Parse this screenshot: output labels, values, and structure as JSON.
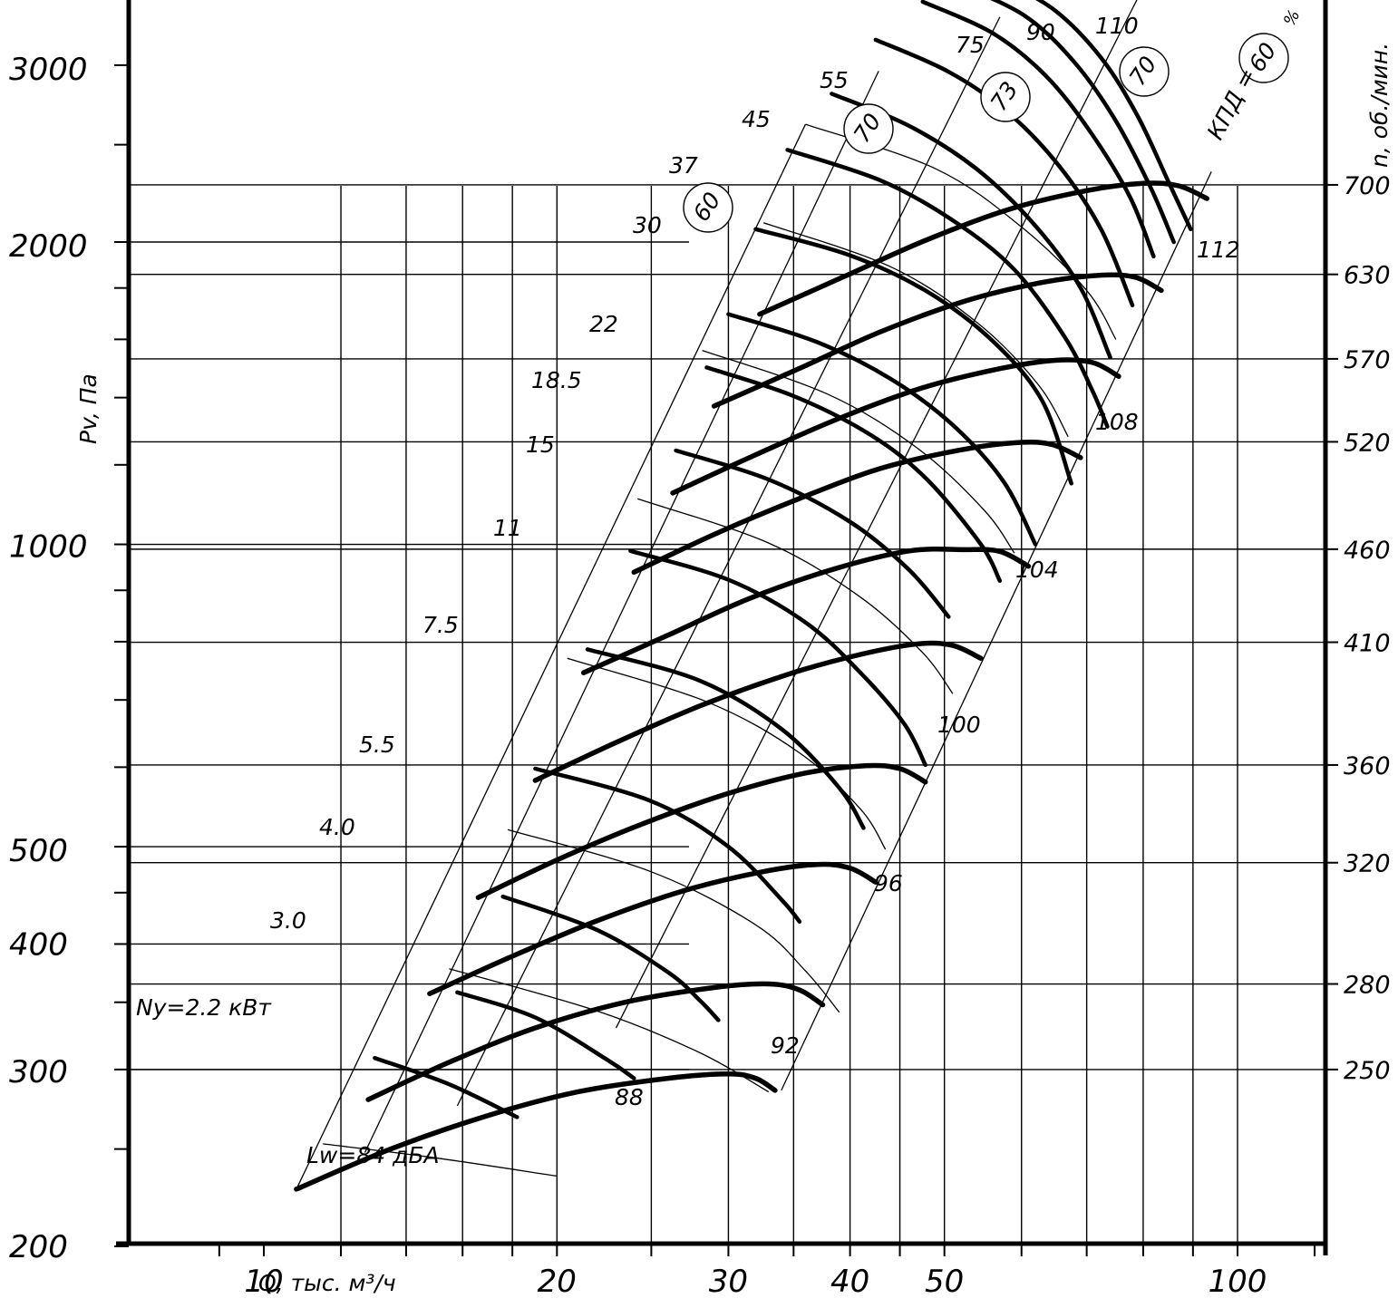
{
  "chart_data": {
    "type": "line",
    "title": "",
    "xlabel": "Q, тыс. м³/ч",
    "ylabel": "Pv, Па",
    "right_label": "n, об./мин.",
    "x_scale": "log",
    "y_scale": "log",
    "xlim": [
      8.5,
      123
    ],
    "ylim": [
      200,
      3700
    ],
    "grid": true,
    "x_ticks": [
      {
        "value": 10,
        "label": "10"
      },
      {
        "value": 20,
        "label": "20"
      },
      {
        "value": 30,
        "label": "30"
      },
      {
        "value": 40,
        "label": "40"
      },
      {
        "value": 50,
        "label": "50"
      },
      {
        "value": 100,
        "label": "100"
      }
    ],
    "y_ticks": [
      {
        "value": 200,
        "label": "200"
      },
      {
        "value": 300,
        "label": "300"
      },
      {
        "value": 400,
        "label": "400"
      },
      {
        "value": 500,
        "label": "500"
      },
      {
        "value": 1000,
        "label": "1000"
      },
      {
        "value": 2000,
        "label": "2000"
      },
      {
        "value": 3000,
        "label": "3000"
      }
    ],
    "speeds": [
      {
        "label": "250",
        "pv": 300
      },
      {
        "label": "280",
        "pv": 365
      },
      {
        "label": "320",
        "pv": 482
      },
      {
        "label": "360",
        "pv": 603
      },
      {
        "label": "410",
        "pv": 799
      },
      {
        "label": "460",
        "pv": 989
      },
      {
        "label": "520",
        "pv": 1265
      },
      {
        "label": "570",
        "pv": 1530
      },
      {
        "label": "630",
        "pv": 1857
      },
      {
        "label": "700",
        "pv": 2280
      }
    ],
    "power_labels": [
      "Ny=2.2 кВт",
      "3.0",
      "4.0",
      "5.5",
      "7.5",
      "11",
      "15",
      "18.5",
      "22",
      "30",
      "37",
      "45",
      "55",
      "75",
      "90",
      "110"
    ],
    "noise_labels": [
      "Lw=84 дБА",
      "88",
      "92",
      "96",
      "100",
      "104",
      "108",
      "112"
    ],
    "efficiency_label": "КПД =",
    "efficiency_unit": "%",
    "efficiency_values": [
      "60",
      "70",
      "73",
      "70",
      "60"
    ],
    "fan_curves": [
      {
        "n": "250",
        "points": [
          [
            10.8,
            228
          ],
          [
            13.5,
            250
          ],
          [
            17,
            270
          ],
          [
            21,
            285
          ],
          [
            26,
            294
          ],
          [
            30,
            297
          ],
          [
            32,
            294
          ],
          [
            33.5,
            286
          ]
        ]
      },
      {
        "n": "280",
        "points": [
          [
            12.8,
            280
          ],
          [
            15.5,
            305
          ],
          [
            19,
            330
          ],
          [
            23.5,
            350
          ],
          [
            29,
            362
          ],
          [
            33,
            365
          ],
          [
            35.5,
            360
          ],
          [
            37.5,
            348
          ]
        ]
      },
      {
        "n": "320",
        "points": [
          [
            14.8,
            357
          ],
          [
            18,
            389
          ],
          [
            22,
            422
          ],
          [
            27,
            452
          ],
          [
            32.5,
            472
          ],
          [
            37,
            480
          ],
          [
            40,
            476
          ],
          [
            42.5,
            461
          ]
        ]
      },
      {
        "n": "360",
        "points": [
          [
            16.6,
            445
          ],
          [
            20,
            485
          ],
          [
            24.5,
            527
          ],
          [
            30,
            565
          ],
          [
            36,
            592
          ],
          [
            41.5,
            602
          ],
          [
            45,
            598
          ],
          [
            47.8,
            580
          ]
        ]
      },
      {
        "n": "410",
        "points": [
          [
            19,
            582
          ],
          [
            23,
            635
          ],
          [
            28,
            690
          ],
          [
            34.5,
            742
          ],
          [
            41,
            777
          ],
          [
            47,
            796
          ],
          [
            51,
            793
          ],
          [
            54.5,
            770
          ]
        ]
      },
      {
        "n": "460",
        "points": [
          [
            21.3,
            745
          ],
          [
            26,
            812
          ],
          [
            31.5,
            883
          ],
          [
            38.5,
            945
          ],
          [
            46,
            985
          ],
          [
            52.5,
            988
          ],
          [
            57,
            984
          ],
          [
            61,
            951
          ]
        ]
      },
      {
        "n": "520",
        "points": [
          [
            24,
            938
          ],
          [
            29,
            1023
          ],
          [
            35.5,
            1111
          ],
          [
            43,
            1190
          ],
          [
            52,
            1242
          ],
          [
            59.5,
            1263
          ],
          [
            64.5,
            1257
          ],
          [
            69,
            1220
          ]
        ]
      },
      {
        "n": "570",
        "points": [
          [
            26.3,
            1125
          ],
          [
            32,
            1228
          ],
          [
            39,
            1335
          ],
          [
            47.5,
            1432
          ],
          [
            57,
            1496
          ],
          [
            65,
            1525
          ],
          [
            71,
            1517
          ],
          [
            75.5,
            1470
          ]
        ]
      },
      {
        "n": "630",
        "points": [
          [
            29,
            1373
          ],
          [
            35.5,
            1497
          ],
          [
            43,
            1628
          ],
          [
            52.5,
            1747
          ],
          [
            63,
            1823
          ],
          [
            72,
            1853
          ],
          [
            78.5,
            1845
          ],
          [
            83.5,
            1790
          ]
        ]
      },
      {
        "n": "700",
        "points": [
          [
            32.3,
            1695
          ],
          [
            39.5,
            1849
          ],
          [
            48,
            2011
          ],
          [
            58.5,
            2158
          ],
          [
            70,
            2250
          ],
          [
            80,
            2288
          ],
          [
            87,
            2275
          ],
          [
            93,
            2210
          ]
        ]
      }
    ],
    "power_curves": [
      {
        "label": "Ny=2.2 кВт",
        "points": [
          [
            13,
            308
          ],
          [
            15.5,
            290
          ],
          [
            18.2,
            269
          ]
        ]
      },
      {
        "label": "3.0",
        "points": [
          [
            15.8,
            358
          ],
          [
            19,
            338
          ],
          [
            22.5,
            307
          ],
          [
            24,
            294
          ]
        ]
      },
      {
        "label": "4.0",
        "points": [
          [
            17.6,
            446
          ],
          [
            22,
            413
          ],
          [
            26,
            375
          ],
          [
            28,
            352
          ],
          [
            29.3,
            336
          ]
        ]
      },
      {
        "label": "5.5",
        "points": [
          [
            19,
            598
          ],
          [
            25,
            555
          ],
          [
            30,
            500
          ],
          [
            34,
            443
          ],
          [
            35.5,
            421
          ]
        ]
      },
      {
        "label": "7.5",
        "points": [
          [
            21.5,
            786
          ],
          [
            28,
            732
          ],
          [
            34,
            655
          ],
          [
            39,
            572
          ],
          [
            41.3,
            522
          ]
        ]
      },
      {
        "label": "11",
        "points": [
          [
            23.8,
            985
          ],
          [
            30,
            922
          ],
          [
            36,
            836
          ],
          [
            41,
            745
          ],
          [
            45.5,
            662
          ],
          [
            47.8,
            603
          ]
        ]
      },
      {
        "label": "15",
        "points": [
          [
            26.5,
            1240
          ],
          [
            33,
            1160
          ],
          [
            40,
            1053
          ],
          [
            46,
            943
          ],
          [
            50.5,
            847
          ]
        ]
      },
      {
        "label": "18.5",
        "points": [
          [
            28.5,
            1500
          ],
          [
            35,
            1405
          ],
          [
            42,
            1285
          ],
          [
            48,
            1160
          ],
          [
            54.5,
            1000
          ],
          [
            57,
            920
          ]
        ]
      },
      {
        "label": "22",
        "points": [
          [
            30,
            1695
          ],
          [
            37,
            1590
          ],
          [
            44,
            1462
          ],
          [
            51,
            1315
          ],
          [
            57.5,
            1155
          ],
          [
            62,
            1000
          ]
        ]
      },
      {
        "label": "30",
        "points": [
          [
            32,
            2060
          ],
          [
            40,
            1940
          ],
          [
            48,
            1785
          ],
          [
            56,
            1595
          ],
          [
            63,
            1390
          ],
          [
            67.5,
            1150
          ]
        ]
      },
      {
        "label": "37",
        "points": [
          [
            34.5,
            2470
          ],
          [
            43,
            2303
          ],
          [
            51,
            2102
          ],
          [
            59,
            1877
          ],
          [
            66.5,
            1607
          ],
          [
            71,
            1420
          ],
          [
            73.5,
            1310
          ]
        ]
      },
      {
        "label": "45",
        "points": [
          [
            38.3,
            2810
          ],
          [
            46,
            2610
          ],
          [
            54,
            2363
          ],
          [
            62,
            2076
          ],
          [
            69,
            1800
          ],
          [
            74,
            1535
          ]
        ]
      },
      {
        "label": "55",
        "points": [
          [
            42.5,
            3180
          ],
          [
            50.5,
            2955
          ],
          [
            58,
            2696
          ],
          [
            65.5,
            2385
          ],
          [
            72.5,
            2055
          ],
          [
            78,
            1730
          ]
        ]
      },
      {
        "label": "75",
        "points": [
          [
            47.5,
            3470
          ],
          [
            56,
            3230
          ],
          [
            63.5,
            2930
          ],
          [
            70.5,
            2580
          ],
          [
            77.5,
            2220
          ],
          [
            82,
            1935
          ]
        ]
      },
      {
        "label": "90",
        "points": [
          [
            51.5,
            3620
          ],
          [
            60.5,
            3358
          ],
          [
            68,
            3020
          ],
          [
            75,
            2640
          ],
          [
            81.5,
            2262
          ],
          [
            86,
            2000
          ]
        ]
      },
      {
        "label": "110",
        "points": [
          [
            57,
            3660
          ],
          [
            65,
            3398
          ],
          [
            72.5,
            3047
          ],
          [
            79,
            2667
          ],
          [
            85,
            2292
          ],
          [
            89.5,
            2060
          ]
        ]
      }
    ],
    "noise_curves": [
      {
        "label": "Lw=84 дБА",
        "points": [
          [
            11.5,
            253
          ],
          [
            15,
            245
          ],
          [
            20,
            235
          ]
        ]
      },
      {
        "label": "88",
        "points": [
          [
            15.5,
            378
          ],
          [
            22,
            343
          ],
          [
            28,
            312
          ],
          [
            33,
            285
          ]
        ]
      },
      {
        "label": "92",
        "points": [
          [
            17.8,
            520
          ],
          [
            25,
            472
          ],
          [
            32,
            418
          ],
          [
            36,
            376
          ],
          [
            39,
            342
          ]
        ]
      },
      {
        "label": "96",
        "points": [
          [
            20.5,
            770
          ],
          [
            28.5,
            697
          ],
          [
            35.5,
            620
          ],
          [
            41,
            545
          ],
          [
            43.5,
            497
          ]
        ]
      },
      {
        "label": "100",
        "points": [
          [
            24.2,
            1110
          ],
          [
            33,
            1003
          ],
          [
            41,
            886
          ],
          [
            47.5,
            780
          ],
          [
            51,
            710
          ]
        ]
      },
      {
        "label": "104",
        "points": [
          [
            28.2,
            1560
          ],
          [
            38,
            1410
          ],
          [
            47,
            1245
          ],
          [
            55,
            1080
          ],
          [
            59,
            980
          ]
        ]
      },
      {
        "label": "108",
        "points": [
          [
            32.6,
            2090
          ],
          [
            44,
            1890
          ],
          [
            54,
            1663
          ],
          [
            62.5,
            1440
          ],
          [
            67,
            1280
          ]
        ]
      },
      {
        "label": "112",
        "points": [
          [
            36,
            2620
          ],
          [
            49,
            2365
          ],
          [
            60,
            2070
          ],
          [
            70,
            1790
          ],
          [
            75,
            1600
          ]
        ]
      }
    ],
    "efficiency_lines": [
      {
        "label": "60",
        "points": [
          [
            10.8,
            228
          ],
          [
            36,
            2620
          ]
        ]
      },
      {
        "label": "70",
        "points": [
          [
            12.7,
            248
          ],
          [
            42.8,
            2960
          ]
        ]
      },
      {
        "label": "73",
        "points": [
          [
            15.8,
            276
          ],
          [
            57,
            3350
          ]
        ]
      },
      {
        "label": "70",
        "points": [
          [
            23,
            330
          ],
          [
            79,
            3500
          ]
        ]
      },
      {
        "label": "60",
        "points": [
          [
            34,
            286
          ],
          [
            94,
            2350
          ]
        ]
      }
    ]
  }
}
